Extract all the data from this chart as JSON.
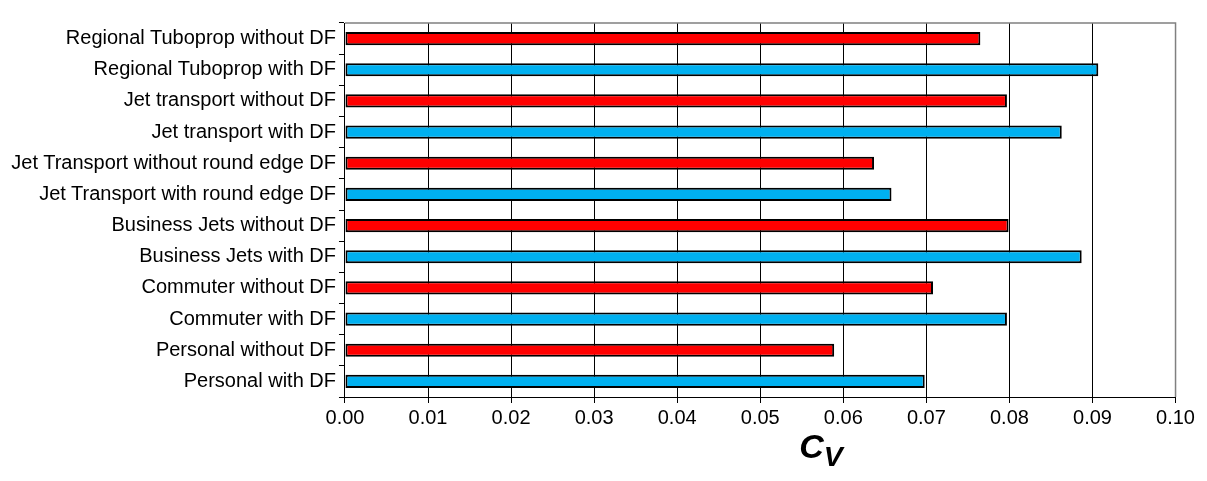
{
  "chart_data": {
    "type": "bar",
    "orientation": "horizontal",
    "xlabel": "C$_{V}$",
    "categories": [
      "Regional Tuboprop without DF",
      "Regional Tuboprop with DF",
      "Jet transport without DF",
      "Jet transport with DF",
      "Jet Transport without round edge DF",
      "Jet Transport with round edge DF",
      "Business Jets without DF",
      "Business Jets with DF",
      "Commuter without DF",
      "Commuter with DF",
      "Personal without DF",
      "Personal with DF"
    ],
    "values": [
      0.0765,
      0.0907,
      0.0797,
      0.0863,
      0.0637,
      0.0658,
      0.0799,
      0.0887,
      0.0708,
      0.0797,
      0.0589,
      0.0698
    ],
    "colors": [
      "#ff0000",
      "#00b0f0",
      "#ff0000",
      "#00b0f0",
      "#ff0000",
      "#00b0f0",
      "#ff0000",
      "#00b0f0",
      "#ff0000",
      "#00b0f0",
      "#ff0000",
      "#00b0f0"
    ],
    "xlim": [
      0,
      0.1
    ],
    "xticks": [
      {
        "value": 0,
        "label": "0.00"
      },
      {
        "value": 0.01,
        "label": "0.01"
      },
      {
        "value": 0.02,
        "label": "0.02"
      },
      {
        "value": 0.03,
        "label": "0.03"
      },
      {
        "value": 0.04,
        "label": "0.04"
      },
      {
        "value": 0.05,
        "label": "0.05"
      },
      {
        "value": 0.06,
        "label": "0.06"
      },
      {
        "value": 0.07,
        "label": "0.07"
      },
      {
        "value": 0.08,
        "label": "0.08"
      },
      {
        "value": 0.09,
        "label": "0.09"
      },
      {
        "value": 0.1,
        "label": "0.10"
      }
    ],
    "grid": "x",
    "legend": false
  }
}
